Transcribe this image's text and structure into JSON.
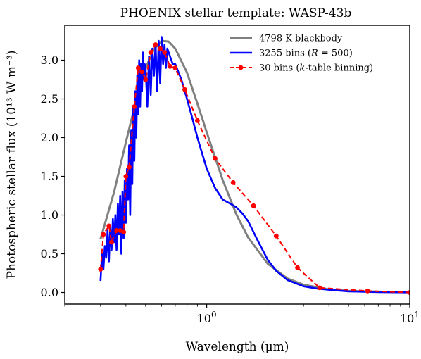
{
  "chart_data": {
    "type": "line",
    "title": "PHOENIX stellar template: WASP-43b",
    "xlabel": "Wavelength (μm)",
    "ylabel": "Photospheric stellar flux (10¹³ W m⁻³)",
    "xscale": "log",
    "xlim": [
      0.2,
      10
    ],
    "ylim": [
      -0.15,
      3.45
    ],
    "grid": false,
    "legend_position": "top-right",
    "x_ticks": [
      {
        "value": 1,
        "base": "10",
        "exp": "0"
      },
      {
        "value": 10,
        "base": "10",
        "exp": "1"
      }
    ],
    "y_ticks": [
      "0.0",
      "0.5",
      "1.0",
      "1.5",
      "2.0",
      "2.5",
      "3.0"
    ],
    "series": [
      {
        "name": "4798 K blackbody",
        "color": "#808080",
        "style": "solid",
        "x": [
          0.3,
          0.35,
          0.4,
          0.45,
          0.5,
          0.55,
          0.6,
          0.65,
          0.7,
          0.8,
          0.9,
          1.0,
          1.2,
          1.4,
          1.6,
          2.0,
          2.5,
          3.0,
          4.0,
          5.0,
          7.0,
          10.0
        ],
        "y": [
          0.69,
          1.3,
          1.94,
          2.49,
          2.9,
          3.14,
          3.25,
          3.24,
          3.15,
          2.84,
          2.44,
          2.07,
          1.45,
          1.01,
          0.71,
          0.37,
          0.18,
          0.1,
          0.04,
          0.02,
          0.01,
          0.002
        ]
      },
      {
        "name": "3255 bins (R = 500)",
        "name_parts": {
          "prefix": "3255 bins (",
          "var": "R",
          "suffix": " = 500)"
        },
        "color": "#0000ff",
        "style": "solid",
        "x": [
          0.3,
          0.305,
          0.31,
          0.315,
          0.32,
          0.325,
          0.33,
          0.335,
          0.34,
          0.345,
          0.35,
          0.355,
          0.36,
          0.365,
          0.37,
          0.375,
          0.38,
          0.385,
          0.39,
          0.395,
          0.4,
          0.405,
          0.41,
          0.415,
          0.42,
          0.425,
          0.43,
          0.435,
          0.44,
          0.445,
          0.45,
          0.455,
          0.46,
          0.465,
          0.47,
          0.475,
          0.48,
          0.485,
          0.49,
          0.495,
          0.5,
          0.51,
          0.52,
          0.53,
          0.54,
          0.55,
          0.56,
          0.57,
          0.58,
          0.59,
          0.6,
          0.61,
          0.62,
          0.63,
          0.64,
          0.66,
          0.68,
          0.7,
          0.75,
          0.8,
          0.85,
          0.9,
          1.0,
          1.1,
          1.2,
          1.3,
          1.4,
          1.5,
          1.6,
          1.7,
          1.8,
          2.0,
          2.2,
          2.5,
          3.0,
          3.5,
          4.0,
          5.0,
          6.0,
          7.0,
          8.0,
          10.0
        ],
        "y": [
          0.15,
          0.5,
          0.3,
          0.6,
          0.45,
          0.8,
          0.4,
          0.85,
          0.55,
          0.95,
          0.65,
          1.0,
          0.55,
          1.15,
          0.75,
          1.25,
          0.5,
          1.3,
          0.7,
          1.45,
          0.9,
          1.6,
          1.2,
          1.9,
          1.0,
          2.1,
          1.4,
          2.4,
          1.7,
          2.6,
          2.0,
          2.8,
          2.3,
          3.0,
          2.4,
          2.95,
          2.6,
          3.1,
          2.75,
          2.95,
          2.9,
          2.4,
          3.05,
          2.55,
          3.15,
          2.8,
          3.2,
          2.6,
          3.25,
          2.7,
          3.3,
          2.95,
          3.2,
          2.9,
          3.15,
          3.05,
          2.95,
          2.95,
          2.75,
          2.5,
          2.25,
          2.0,
          1.6,
          1.35,
          1.2,
          1.15,
          1.1,
          1.02,
          0.92,
          0.78,
          0.65,
          0.42,
          0.28,
          0.16,
          0.08,
          0.05,
          0.035,
          0.015,
          0.01,
          0.005,
          0.004,
          0.002
        ]
      },
      {
        "name": "30 bins (k-table binning)",
        "name_parts": {
          "prefix": "30 bins (",
          "var": "k",
          "suffix": "-table binning)"
        },
        "color": "#ff0000",
        "style": "dashed",
        "marker": "circle",
        "x": [
          0.3,
          0.31,
          0.33,
          0.34,
          0.36,
          0.375,
          0.39,
          0.4,
          0.415,
          0.44,
          0.46,
          0.48,
          0.5,
          0.53,
          0.56,
          0.59,
          0.62,
          0.66,
          0.7,
          0.78,
          0.9,
          1.1,
          1.35,
          1.7,
          2.2,
          2.8,
          3.6,
          6.2,
          10.0
        ],
        "y": [
          0.3,
          0.75,
          0.86,
          0.65,
          0.8,
          0.8,
          0.78,
          1.5,
          1.62,
          2.4,
          2.9,
          2.85,
          2.75,
          3.1,
          3.2,
          3.15,
          3.1,
          2.92,
          2.9,
          2.62,
          2.22,
          1.73,
          1.42,
          1.12,
          0.73,
          0.32,
          0.06,
          0.02,
          0.0
        ]
      }
    ]
  }
}
